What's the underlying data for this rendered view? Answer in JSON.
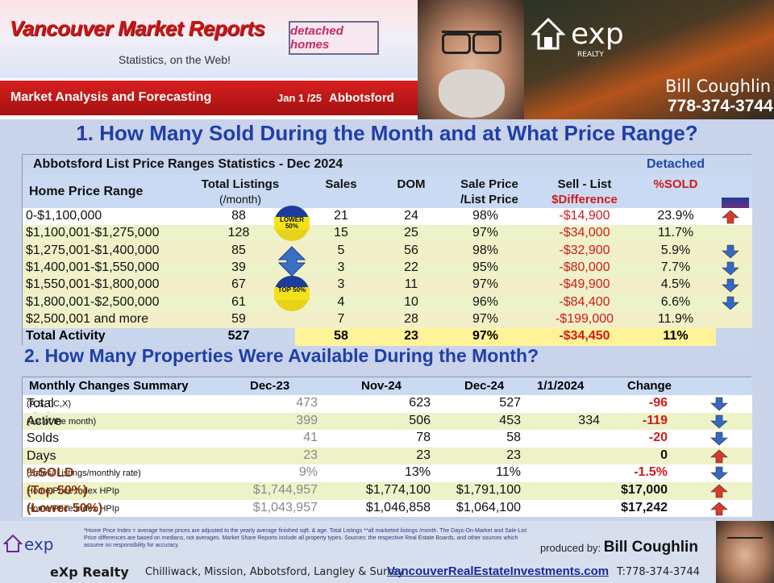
{
  "header": {
    "title": "Vancouver Market Reports",
    "subtitle": "Statistics, on the Web!",
    "badge": "detached homes",
    "bar_left": "Market Analysis and Forecasting",
    "bar_date": "Jan 1 /25",
    "bar_city": "Abbotsford",
    "brand_logo_text": "exp",
    "brand_logo_sub": "REALTY",
    "agent_name": "Bill Coughlin",
    "agent_phone": "778-374-3744"
  },
  "section1": {
    "question": "1. How Many Sold During the Month and at What Price Range?",
    "caption": "Abbotsford List Price Ranges Statistics - Dec  2024",
    "category": "Detached",
    "columns": {
      "range": "Home Price Range",
      "total_a": "Total  Listings",
      "total_b": "(/month)",
      "sales": "Sales",
      "dom": "DOM",
      "sp_a": "Sale Price",
      "sp_b": "/List Price",
      "diff_a": "Sell - List",
      "diff_b": "$Difference",
      "pct": "%SOLD"
    },
    "lower_label": "LOWER 50%",
    "top_label": "TOP 50%",
    "rows": [
      {
        "range": "0-$1,100,000",
        "total": "88",
        "sales": "21",
        "dom": "24",
        "sp": "98%",
        "diff": "-$14,900",
        "pct": "23.9%",
        "trend": "up"
      },
      {
        "range": "$1,100,001-$1,275,000",
        "total": "128",
        "sales": "15",
        "dom": "25",
        "sp": "97%",
        "diff": "-$34,000",
        "pct": "11.7%",
        "trend": "none"
      },
      {
        "range": "$1,275,001-$1,400,000",
        "total": "85",
        "sales": "5",
        "dom": "56",
        "sp": "98%",
        "diff": "-$32,900",
        "pct": "5.9%",
        "trend": "down"
      },
      {
        "range": "$1,400,001-$1,550,000",
        "total": "39",
        "sales": "3",
        "dom": "22",
        "sp": "95%",
        "diff": "-$80,000",
        "pct": "7.7%",
        "trend": "down"
      },
      {
        "range": "$1,550,001-$1,800,000",
        "total": "67",
        "sales": "3",
        "dom": "11",
        "sp": "97%",
        "diff": "-$49,900",
        "pct": "4.5%",
        "trend": "down"
      },
      {
        "range": "$1,800,001-$2,500,000",
        "total": "61",
        "sales": "4",
        "dom": "10",
        "sp": "96%",
        "diff": "-$84,400",
        "pct": "6.6%",
        "trend": "down"
      },
      {
        "range": "$2,500,001 and more",
        "total": "59",
        "sales": "7",
        "dom": "28",
        "sp": "97%",
        "diff": "-$199,000",
        "pct": "11.9%",
        "trend": "none"
      }
    ],
    "total": {
      "label": "Total Activity",
      "total": "527",
      "sales": "58",
      "dom": "23",
      "sp": "97%",
      "diff": "-$34,450",
      "pct": "11%"
    }
  },
  "section2": {
    "question": "2. How Many Properties Were Available During the Month?",
    "columns": {
      "label": "Monthly Changes Summary",
      "dec23": "Dec-23",
      "nov24": "Nov-24",
      "dec24": "Dec-24",
      "jan": "1/1/2024",
      "change": "Change"
    },
    "rows": [
      {
        "label": "Total Listings**",
        "note": "(A,S,T,C,X)",
        "dec23": "473",
        "nov24": "623",
        "dec24": "527",
        "jan": "",
        "change": "-96",
        "trend": "down",
        "style": "normal"
      },
      {
        "label": "Active Listings",
        "note": "(1st of the month)",
        "dec23": "399",
        "nov24": "506",
        "dec24": "453",
        "jan": "334",
        "change": "-119",
        "trend": "down",
        "style": "normal"
      },
      {
        "label": "Solds",
        "note": "",
        "dec23": "41",
        "nov24": "78",
        "dec24": "58",
        "jan": "",
        "change": "-20",
        "trend": "down",
        "style": "normal"
      },
      {
        "label": "Days on Market (DOM)",
        "note": "",
        "dec23": "23",
        "nov24": "23",
        "dec24": "23",
        "jan": "",
        "change": "0",
        "trend": "up",
        "style": "normal"
      },
      {
        "label": "%SOLD",
        "note": "(Sales/ Listings/monthly rate)",
        "dec23": "9%",
        "nov24": "13%",
        "dec24": "11%",
        "jan": "",
        "change": "-1.5%",
        "trend": "down",
        "style": "brown"
      },
      {
        "label": "(Top 50%)",
        "note": "Home Price Index HPIp",
        "dec23": "$1,744,957",
        "nov24": "$1,774,100",
        "dec24": "$1,791,100",
        "jan": "",
        "change": "$17,000",
        "trend": "up",
        "style": "brown"
      },
      {
        "label": "(Lower 50%)",
        "note": "Home Price Index HPIp",
        "dec23": "$1,043,957",
        "nov24": "$1,046,858",
        "dec24": "$1,064,100",
        "jan": "",
        "change": "$17,242",
        "trend": "up",
        "style": "brown"
      }
    ]
  },
  "footer": {
    "note": "*Home Price Index = average home prices are adjusted to the yearly average finished sqft. & age.  Total Listings **all marketed listings /month. The Days-On-Market and Sale-List Price differences are based on medians, not averages. Market Share Reports include all property types. Sources:  the respective Real Estate Boards, and other sources which assume no responsibility for accuracy.",
    "brand": "eXp Realty",
    "cities": "Chilliwack, Mission, Abbotsford, Langley & Surrey",
    "url": "VancouverRealEstateInvestments.com",
    "tel": "T:778-374-3744",
    "produced_by": "produced by:",
    "producer": "Bill Coughlin"
  },
  "colors": {
    "accent_blue": "#1f3fa8",
    "negative_red": "#d21a1a",
    "header_red": "#c81616",
    "highlight_yellow": "#fff39a"
  }
}
